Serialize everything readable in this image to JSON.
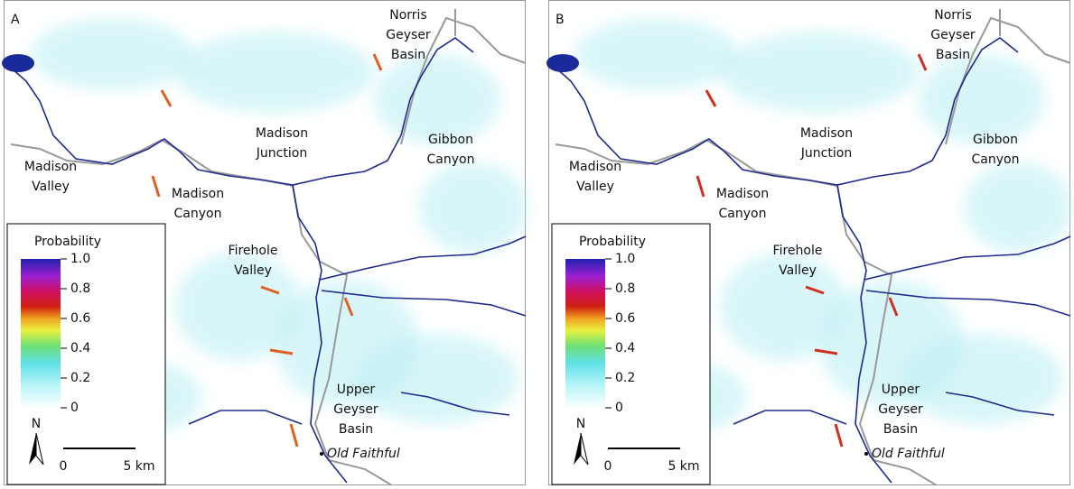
{
  "panels": [
    {
      "letter": "A",
      "places": [
        {
          "lines": [
            "Norris",
            "Geyser",
            "Basin"
          ]
        },
        {
          "lines": [
            "Madison",
            "Junction"
          ]
        },
        {
          "lines": [
            "Gibbon",
            "Canyon"
          ]
        },
        {
          "lines": [
            "Madison",
            "Valley"
          ]
        },
        {
          "lines": [
            "Madison",
            "Canyon"
          ]
        },
        {
          "lines": [
            "Firehole",
            "Valley"
          ]
        },
        {
          "lines": [
            "Upper",
            "Geyser",
            "Basin"
          ]
        }
      ],
      "landmark": "Old Faithful",
      "legend": {
        "title": "Probability",
        "ticks": [
          {
            "value": 1,
            "label": "1.0"
          },
          {
            "value": 0.8,
            "label": "0.8"
          },
          {
            "value": 0.6,
            "label": "0.6"
          },
          {
            "value": 0.4,
            "label": "0.4"
          },
          {
            "value": 0.2,
            "label": "0.2"
          },
          0
        ]
      },
      "north": "N",
      "scale_bar": {
        "start": "0",
        "end": "5 km"
      }
    },
    {
      "letter": "B",
      "places": [
        {
          "lines": [
            "Norris",
            "Geyser",
            "Basin"
          ]
        },
        {
          "lines": [
            "Madison",
            "Junction"
          ]
        },
        {
          "lines": [
            "Gibbon",
            "Canyon"
          ]
        },
        {
          "lines": [
            "Madison",
            "Valley"
          ]
        },
        {
          "lines": [
            "Madison",
            "Canyon"
          ]
        },
        {
          "lines": [
            "Firehole",
            "Valley"
          ]
        },
        {
          "lines": [
            "Upper",
            "Geyser",
            "Basin"
          ]
        }
      ],
      "landmark": "Old Faithful",
      "legend": {
        "title": "Probability",
        "ticks": [
          {
            "value": 1,
            "label": "1.0"
          },
          {
            "value": 0.8,
            "label": "0.8"
          },
          {
            "value": 0.6,
            "label": "0.6"
          },
          {
            "value": 0.4,
            "label": "0.4"
          },
          {
            "value": 0.2,
            "label": "0.2"
          },
          0
        ]
      },
      "north": "N",
      "scale_bar": {
        "start": "0",
        "end": "5 km"
      }
    }
  ]
}
